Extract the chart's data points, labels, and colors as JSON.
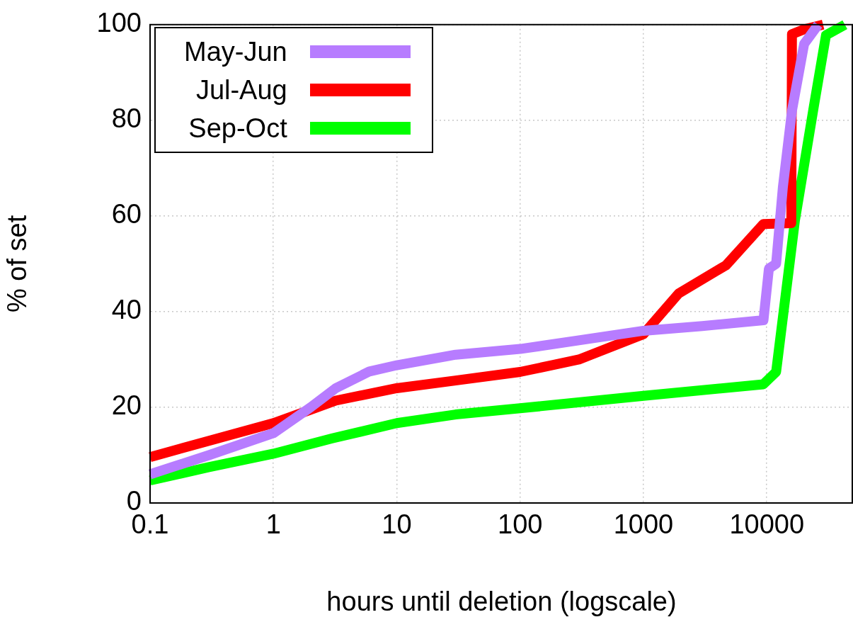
{
  "chart_data": {
    "type": "line",
    "xlabel": "hours until deletion (logscale)",
    "ylabel": "% of set",
    "log": "x",
    "xlim": [
      0.1,
      50000
    ],
    "xticks": [
      0.1,
      1,
      10,
      100,
      1000,
      10000
    ],
    "ylim": [
      0,
      100
    ],
    "yticks": [
      0,
      20,
      40,
      60,
      80,
      100
    ],
    "grid": true,
    "legend": "top left",
    "marker": "none",
    "line_style": "solid",
    "series": [
      {
        "name": "May-Jun",
        "color": "#b77cff",
        "x": [
          0.1,
          0.3,
          1,
          2,
          3.2,
          6,
          10,
          30,
          100,
          300,
          1000,
          3000,
          9400,
          10400,
          11900,
          13500,
          16000,
          20100,
          26100
        ],
        "values": [
          6,
          10,
          14.6,
          20,
          24,
          27.5,
          28.8,
          31,
          32.2,
          34,
          36,
          37,
          38.2,
          49,
          50,
          66,
          82,
          96,
          100
        ]
      },
      {
        "name": "Jul-Aug",
        "color": "#ff0000",
        "x": [
          0.1,
          0.3,
          1,
          2,
          3.2,
          10,
          30,
          100,
          300,
          1000,
          1930,
          4670,
          9360,
          15800,
          16000,
          20000,
          28600
        ],
        "values": [
          9.6,
          13,
          16.7,
          19.5,
          21.4,
          24,
          25.6,
          27.4,
          30,
          35.3,
          43.8,
          49.7,
          58.3,
          58.5,
          98,
          99,
          100
        ]
      },
      {
        "name": "Sep-Oct",
        "color": "#00ff00",
        "x": [
          0.1,
          0.3,
          1,
          3,
          10,
          30,
          100,
          1000,
          9360,
          11900,
          16900,
          24100,
          30200,
          43000
        ],
        "values": [
          4.7,
          7.5,
          10.3,
          13.5,
          16.7,
          18.5,
          19.8,
          22.4,
          24.8,
          27.4,
          59,
          83,
          97.8,
          100
        ]
      }
    ]
  }
}
